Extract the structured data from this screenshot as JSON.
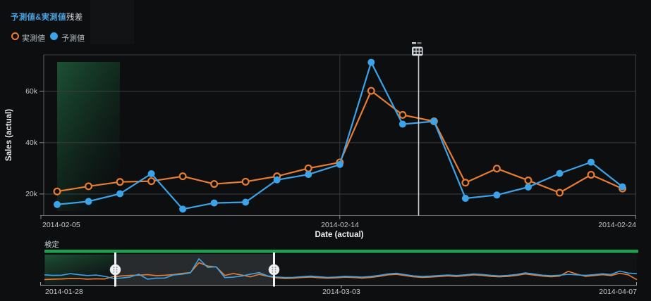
{
  "header": {
    "tabs": [
      {
        "label": "予測値&実測値",
        "active": true
      },
      {
        "label": "残差",
        "active": false
      }
    ]
  },
  "legend": [
    {
      "label": "実測値",
      "marker": "ring",
      "color": "#e87c30"
    },
    {
      "label": "予測値",
      "marker": "dot",
      "color": "#3ca3e8"
    }
  ],
  "colors": {
    "background": "#0c0e10",
    "actual_series": "#e87c30",
    "predicted_series": "#3ca3e8",
    "active_tab": "#4ba0dc",
    "grid_line": "#3a3f44",
    "green_bar": "#1ca04f",
    "train_region_green": "#27794a",
    "divider_line": "#ccd0d4"
  },
  "chart_data": {
    "type": "line",
    "title": "予測値&実測値",
    "xlabel": "Date (actual)",
    "ylabel": "Sales (actual)",
    "x": [
      "2014-02-05",
      "2014-02-06",
      "2014-02-07",
      "2014-02-08",
      "2014-02-09",
      "2014-02-10",
      "2014-02-11",
      "2014-02-12",
      "2014-02-13",
      "2014-02-14",
      "2014-02-15",
      "2014-02-16",
      "2014-02-17",
      "2014-02-18",
      "2014-02-19",
      "2014-02-20",
      "2014-02-21",
      "2014-02-22",
      "2014-02-23"
    ],
    "series": [
      {
        "name": "実測値",
        "color": "#e87c30",
        "marker": "open-circle",
        "values": [
          21000,
          23000,
          24700,
          25000,
          26900,
          23900,
          24800,
          26900,
          30000,
          32300,
          60200,
          50800,
          48300,
          24400,
          29900,
          25300,
          20500,
          27500,
          22100
        ]
      },
      {
        "name": "予測値",
        "color": "#3ca3e8",
        "marker": "filled-circle",
        "values": [
          15900,
          17100,
          20100,
          27900,
          14100,
          16500,
          16800,
          25500,
          27600,
          31500,
          71300,
          47200,
          48300,
          18300,
          19600,
          22700,
          28000,
          32400,
          22800
        ]
      }
    ],
    "ylim": [
      11600,
      74200
    ],
    "y_tick_values": [
      20000,
      40000,
      60000
    ],
    "y_tick_labels": [
      "60k",
      "40k",
      "20k"
    ],
    "x_tick_labels": [
      "2014-02-05",
      "2014-02-14",
      "2014-02-24"
    ],
    "x_gridline_index": 9,
    "grid": "on",
    "legend_position": "top-left",
    "highlight_region": {
      "from": "2014-02-05",
      "to": "2014-02-07",
      "style": "green-gradient"
    },
    "divider": {
      "between": [
        "2014-02-16",
        "2014-02-17"
      ],
      "handle_icon": "table-grid"
    },
    "slider": {
      "label": "検定",
      "window": [
        "2014-02-05",
        "2014-02-24"
      ],
      "x_tick_labels": [
        "2014-01-28",
        "2014-03-03",
        "2014-04-07"
      ],
      "ylim": [
        0,
        75000
      ],
      "dates": [
        "2014-01-28",
        "2014-01-29",
        "2014-01-30",
        "2014-01-31",
        "2014-02-01",
        "2014-02-02",
        "2014-02-03",
        "2014-02-04",
        "2014-02-05",
        "2014-02-06",
        "2014-02-07",
        "2014-02-08",
        "2014-02-09",
        "2014-02-10",
        "2014-02-11",
        "2014-02-12",
        "2014-02-13",
        "2014-02-14",
        "2014-02-15",
        "2014-02-16",
        "2014-02-17",
        "2014-02-18",
        "2014-02-19",
        "2014-02-20",
        "2014-02-21",
        "2014-02-22",
        "2014-02-23",
        "2014-02-24",
        "2014-02-25",
        "2014-02-26",
        "2014-02-27",
        "2014-02-28",
        "2014-03-01",
        "2014-03-02",
        "2014-03-03",
        "2014-03-04",
        "2014-03-05",
        "2014-03-06",
        "2014-03-07",
        "2014-03-08",
        "2014-03-09",
        "2014-03-10",
        "2014-03-11",
        "2014-03-12",
        "2014-03-13",
        "2014-03-14",
        "2014-03-15",
        "2014-03-16",
        "2014-03-17",
        "2014-03-18",
        "2014-03-19",
        "2014-03-20",
        "2014-03-21",
        "2014-03-22",
        "2014-03-23",
        "2014-03-24",
        "2014-03-25",
        "2014-03-26",
        "2014-03-27",
        "2014-03-28",
        "2014-03-29",
        "2014-03-30",
        "2014-03-31",
        "2014-04-01",
        "2014-04-02",
        "2014-04-03",
        "2014-04-04",
        "2014-04-05",
        "2014-04-06",
        "2014-04-07"
      ],
      "series": [
        {
          "name": "実測値",
          "color": "#e87c30",
          "values": [
            13000,
            14000,
            14500,
            16000,
            15500,
            14000,
            15000,
            14500,
            21000,
            23000,
            24700,
            25000,
            26900,
            23900,
            24800,
            26900,
            30000,
            32300,
            60200,
            50800,
            48300,
            24400,
            29900,
            25300,
            20500,
            27500,
            22100,
            17500,
            16000,
            16500,
            18500,
            20000,
            18000,
            16500,
            17500,
            19500,
            18500,
            17000,
            19000,
            22000,
            26000,
            27500,
            24000,
            20500,
            19000,
            20000,
            21500,
            23000,
            21500,
            23500,
            26000,
            24500,
            22000,
            20500,
            22000,
            24500,
            28500,
            25500,
            22500,
            21000,
            22500,
            36000,
            28000,
            22000,
            24000,
            26500,
            24000,
            30500,
            26000,
            12500
          ]
        },
        {
          "name": "予測値",
          "color": "#3ca3e8",
          "values": [
            26000,
            24500,
            25000,
            29500,
            26500,
            24000,
            25500,
            22000,
            15900,
            17100,
            20100,
            27900,
            14100,
            16500,
            16800,
            25500,
            27600,
            31500,
            71300,
            47200,
            48300,
            18300,
            19600,
            22700,
            28000,
            32400,
            22800,
            20000,
            18500,
            19000,
            21000,
            22500,
            20500,
            19000,
            20000,
            22000,
            21000,
            19500,
            21500,
            24500,
            28500,
            30500,
            26500,
            23000,
            21500,
            22500,
            24000,
            25500,
            24000,
            26000,
            28500,
            27000,
            24500,
            23000,
            24500,
            27000,
            31500,
            28500,
            25000,
            23500,
            25000,
            27500,
            26000,
            24500,
            26500,
            29000,
            27000,
            36500,
            31000,
            29500
          ]
        }
      ]
    }
  }
}
